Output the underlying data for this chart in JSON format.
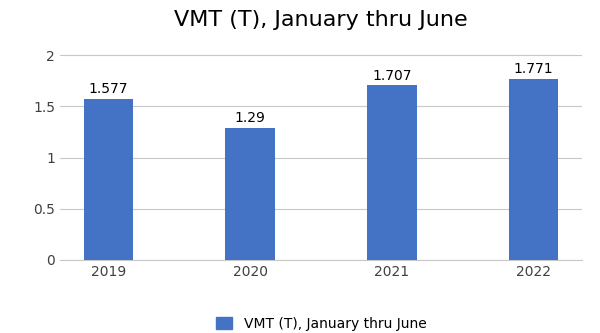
{
  "title": "VMT (T), January thru June",
  "categories": [
    "2019",
    "2020",
    "2021",
    "2022"
  ],
  "values": [
    1.577,
    1.29,
    1.707,
    1.771
  ],
  "bar_color": "#4472C4",
  "legend_label": "VMT (T), January thru June",
  "ylim": [
    0,
    2.15
  ],
  "yticks": [
    0,
    0.5,
    1.0,
    1.5,
    2.0
  ],
  "ytick_labels": [
    "0",
    "0.5",
    "1",
    "1.5",
    "2"
  ],
  "title_fontsize": 16,
  "label_fontsize": 10,
  "tick_fontsize": 10,
  "legend_fontsize": 10,
  "background_color": "#ffffff",
  "grid_color": "#c8c8c8",
  "bar_width": 0.35
}
